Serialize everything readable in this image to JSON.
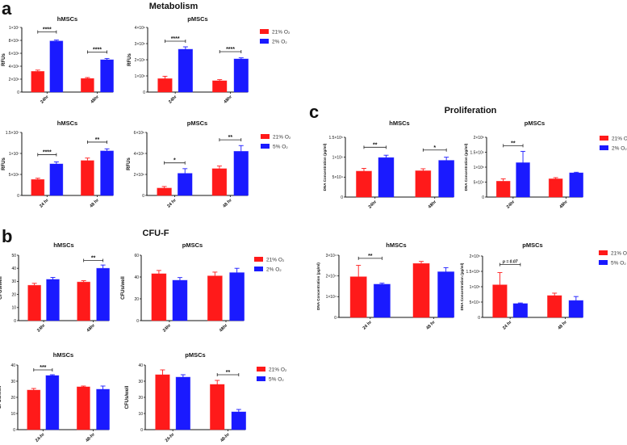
{
  "figure": {
    "panels": [
      {
        "letter": "a",
        "title": "Metabolism"
      },
      {
        "letter": "b",
        "title": "CFU-F"
      },
      {
        "letter": "c",
        "title": "Proliferation"
      }
    ],
    "colors": {
      "normoxia": "#ff1a1a",
      "hypoxia": "#1a1aff"
    }
  },
  "chart_data": [
    {
      "type": "bar",
      "panel": "a",
      "title": "hMSCs",
      "ylabel": "RFUs",
      "ylim": [
        0,
        10000000
      ],
      "yticks": [
        0,
        2000000,
        4000000,
        6000000,
        8000000,
        10000000
      ],
      "ytick_labels": [
        "0",
        "2×10⁶",
        "4×10⁶",
        "6×10⁶",
        "8×10⁶",
        "1×10⁷"
      ],
      "categories": [
        "24hr",
        "48hr"
      ],
      "series": [
        {
          "name": "21% O₂",
          "values": [
            3200000,
            2100000
          ],
          "errors": [
            200000,
            150000
          ]
        },
        {
          "name": "2% O₂",
          "values": [
            7900000,
            5000000
          ],
          "errors": [
            150000,
            200000
          ]
        }
      ],
      "significance": [
        {
          "category": 0,
          "label": "****",
          "level": 9300000
        },
        {
          "category": 1,
          "label": "****",
          "level": 6200000
        }
      ]
    },
    {
      "type": "bar",
      "panel": "a",
      "title": "pMSCs",
      "ylabel": "RFUs",
      "ylim": [
        0,
        4000000
      ],
      "yticks": [
        0,
        1000000,
        2000000,
        3000000,
        4000000
      ],
      "ytick_labels": [
        "0",
        "1×10⁶",
        "2×10⁶",
        "3×10⁶",
        "4×10⁶"
      ],
      "categories": [
        "24hr",
        "48hr"
      ],
      "series": [
        {
          "name": "21% O₂",
          "values": [
            830000,
            700000
          ],
          "errors": [
            150000,
            70000
          ]
        },
        {
          "name": "2% O₂",
          "values": [
            2650000,
            2050000
          ],
          "errors": [
            150000,
            70000
          ]
        }
      ],
      "significance": [
        {
          "category": 0,
          "label": "****",
          "level": 3150000
        },
        {
          "category": 1,
          "label": "****",
          "level": 2500000
        }
      ]
    },
    {
      "type": "bar",
      "panel": "a",
      "title": "hMSCs",
      "ylabel": "RFUs",
      "ylim": [
        0,
        15000000
      ],
      "yticks": [
        0,
        5000000,
        10000000,
        15000000
      ],
      "ytick_labels": [
        "0",
        "5×10⁶",
        "1×10⁷",
        "1.5×10⁷"
      ],
      "categories": [
        "24 hr",
        "48 hr"
      ],
      "series": [
        {
          "name": "21% O₂",
          "values": [
            3800000,
            8300000
          ],
          "errors": [
            300000,
            600000
          ]
        },
        {
          "name": "5% O₂",
          "values": [
            7500000,
            10600000
          ],
          "errors": [
            500000,
            500000
          ]
        }
      ],
      "significance": [
        {
          "category": 0,
          "label": "****",
          "level": 9700000
        },
        {
          "category": 1,
          "label": "**",
          "level": 12700000
        }
      ]
    },
    {
      "type": "bar",
      "panel": "a",
      "title": "pMSCs",
      "ylabel": "RFUs",
      "ylim": [
        0,
        6000000
      ],
      "yticks": [
        0,
        2000000,
        4000000,
        6000000
      ],
      "ytick_labels": [
        "0",
        "2×10⁶",
        "4×10⁶",
        "6×10⁶"
      ],
      "categories": [
        "24 hr",
        "48 hr"
      ],
      "series": [
        {
          "name": "21% O₂",
          "values": [
            700000,
            2550000
          ],
          "errors": [
            150000,
            250000
          ]
        },
        {
          "name": "5% O₂",
          "values": [
            2100000,
            4200000
          ],
          "errors": [
            450000,
            550000
          ]
        }
      ],
      "significance": [
        {
          "category": 0,
          "label": "*",
          "level": 3100000
        },
        {
          "category": 1,
          "label": "**",
          "level": 5300000
        }
      ]
    },
    {
      "type": "bar",
      "panel": "b",
      "title": "hMSCs",
      "ylabel": "CFUs/well",
      "ylim": [
        0,
        50
      ],
      "yticks": [
        0,
        10,
        20,
        30,
        40,
        50
      ],
      "ytick_labels": [
        "0",
        "10",
        "20",
        "30",
        "40",
        "50"
      ],
      "categories": [
        "24hr",
        "48hr"
      ],
      "series": [
        {
          "name": "21% O₂",
          "values": [
            27,
            29.5
          ],
          "errors": [
            1.5,
            1
          ]
        },
        {
          "name": "2% O₂",
          "values": [
            31.5,
            40
          ],
          "errors": [
            1.5,
            2.5
          ]
        }
      ],
      "significance": [
        {
          "category": 1,
          "label": "**",
          "level": 46
        }
      ]
    },
    {
      "type": "bar",
      "panel": "b",
      "title": "pMSCs",
      "ylabel": "CFUs/well",
      "ylim": [
        0,
        60
      ],
      "yticks": [
        0,
        20,
        40,
        60
      ],
      "ytick_labels": [
        "0",
        "20",
        "40",
        "60"
      ],
      "categories": [
        "24hr",
        "48hr"
      ],
      "series": [
        {
          "name": "21% O₂",
          "values": [
            43,
            41
          ],
          "errors": [
            3,
            3.5
          ]
        },
        {
          "name": "2% O₂",
          "values": [
            37,
            44
          ],
          "errors": [
            2.5,
            4
          ]
        }
      ],
      "significance": []
    },
    {
      "type": "bar",
      "panel": "b",
      "title": "hMSCs",
      "ylabel": "CFUs/well",
      "ylim": [
        0,
        40
      ],
      "yticks": [
        0,
        10,
        20,
        30,
        40
      ],
      "ytick_labels": [
        "0",
        "10",
        "20",
        "30",
        "40"
      ],
      "categories": [
        "24-hr",
        "48-hr"
      ],
      "series": [
        {
          "name": "21% O₂",
          "values": [
            24.5,
            26.5
          ],
          "errors": [
            1,
            0.5
          ]
        },
        {
          "name": "5% O₂",
          "values": [
            33.5,
            25
          ],
          "errors": [
            0.5,
            2
          ]
        }
      ],
      "significance": [
        {
          "category": 0,
          "label": "***",
          "level": 37
        }
      ]
    },
    {
      "type": "bar",
      "panel": "b",
      "title": "pMSCs",
      "ylabel": "CFUs/well",
      "ylim": [
        0,
        40
      ],
      "yticks": [
        0,
        10,
        20,
        30,
        40
      ],
      "ytick_labels": [
        "0",
        "10",
        "20",
        "30",
        "40"
      ],
      "categories": [
        "24-hr",
        "48-hr"
      ],
      "series": [
        {
          "name": "21% O₂",
          "values": [
            34,
            28
          ],
          "errors": [
            3,
            2.5
          ]
        },
        {
          "name": "5% O₂",
          "values": [
            32.5,
            11
          ],
          "errors": [
            1.5,
            1.5
          ]
        }
      ],
      "significance": [
        {
          "category": 1,
          "label": "**",
          "level": 34
        }
      ]
    },
    {
      "type": "bar",
      "panel": "c",
      "title": "hMSCs",
      "ylabel": "DNA Concentration (pg/ml)",
      "ylim": [
        0,
        150000
      ],
      "yticks": [
        0,
        50000,
        100000,
        150000
      ],
      "ytick_labels": [
        "0",
        "5×10⁴",
        "1×10⁵",
        "1.5×10⁵"
      ],
      "categories": [
        "24hr",
        "48hr"
      ],
      "series": [
        {
          "name": "21% O₂",
          "values": [
            65000,
            66000
          ],
          "errors": [
            7000,
            5000
          ]
        },
        {
          "name": "2% O₂",
          "values": [
            99000,
            92000
          ],
          "errors": [
            6000,
            8000
          ]
        }
      ],
      "significance": [
        {
          "category": 0,
          "label": "**",
          "level": 125000
        },
        {
          "category": 1,
          "label": "*",
          "level": 118000
        }
      ]
    },
    {
      "type": "bar",
      "panel": "c",
      "title": "pMSCs",
      "ylabel": "DNA Concentration (pg/ml)",
      "ylim": [
        0,
        200000
      ],
      "yticks": [
        0,
        50000,
        100000,
        150000,
        200000
      ],
      "ytick_labels": [
        "0",
        "5×10⁴",
        "1×10⁵",
        "1.5×10⁵",
        "2×10⁵"
      ],
      "categories": [
        "24hr",
        "48hr"
      ],
      "series": [
        {
          "name": "21% O₂",
          "values": [
            53000,
            61000
          ],
          "errors": [
            8000,
            4000
          ]
        },
        {
          "name": "2% O₂",
          "values": [
            115000,
            81000
          ],
          "errors": [
            38000,
            2000
          ]
        }
      ],
      "significance": [
        {
          "category": 0,
          "label": "**",
          "level": 172000
        }
      ]
    },
    {
      "type": "bar",
      "panel": "c",
      "title": "hMSCs",
      "ylabel": "DNA Concentration (pg/ml)",
      "ylim": [
        0,
        30000
      ],
      "yticks": [
        0,
        10000,
        20000,
        30000
      ],
      "ytick_labels": [
        "0",
        "1×10⁴",
        "2×10⁴",
        "3×10⁴"
      ],
      "categories": [
        "24 hr",
        "48 hr"
      ],
      "series": [
        {
          "name": "21% O₂",
          "values": [
            19600,
            26000
          ],
          "errors": [
            5500,
            1000
          ]
        },
        {
          "name": "5% O₂",
          "values": [
            16000,
            22000
          ],
          "errors": [
            500,
            2000
          ]
        }
      ],
      "significance": [
        {
          "category": 0,
          "label": "**",
          "level": 28500
        }
      ]
    },
    {
      "type": "bar",
      "panel": "c",
      "title": "pMSCs",
      "ylabel": "DNA Concentration (pg/ml)",
      "ylim": [
        0,
        200000
      ],
      "yticks": [
        0,
        50000,
        100000,
        150000,
        200000
      ],
      "ytick_labels": [
        "0",
        "5×10⁴",
        "1×10⁵",
        "1.5×10⁵",
        "2×10⁵"
      ],
      "categories": [
        "24 hr",
        "48 hr"
      ],
      "series": [
        {
          "name": "21% O₂",
          "values": [
            106000,
            71000
          ],
          "errors": [
            40000,
            8000
          ]
        },
        {
          "name": "5% O₂",
          "values": [
            45000,
            55000
          ],
          "errors": [
            2000,
            13000
          ]
        }
      ],
      "significance": [
        {
          "category": 0,
          "label": "p = 0.07",
          "level": 172000
        }
      ]
    }
  ]
}
